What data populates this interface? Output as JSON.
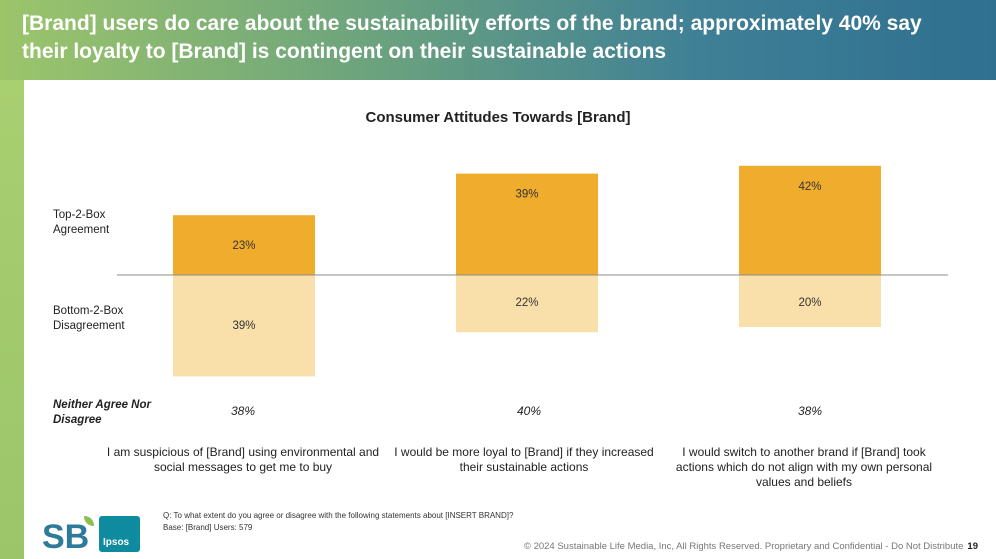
{
  "header": {
    "title": "[Brand] users do care about the sustainability efforts of the brand; approximately 40% say their loyalty to [Brand] is contingent on their sustainable actions"
  },
  "colors": {
    "agree": "#f0ac2d",
    "disagree": "#f9dfaa",
    "baseline": "#8c8c8c"
  },
  "chart_data": {
    "type": "bar",
    "title": "Consumer Attitudes Towards [Brand]",
    "row_labels": {
      "agree": "Top-2-Box Agreement",
      "disagree": "Bottom-2-Box Disagreement",
      "neutral": "Neither Agree Nor Disagree"
    },
    "categories": [
      "I am suspicious of [Brand] using environmental and social messages to get me to buy",
      "I would be more loyal to [Brand] if they increased their sustainable actions",
      "I would switch to another brand if [Brand] took actions which do not align with my own personal values and beliefs"
    ],
    "series": [
      {
        "name": "Top-2-Box Agreement",
        "values": [
          23,
          39,
          42
        ]
      },
      {
        "name": "Bottom-2-Box Disagreement",
        "values": [
          39,
          22,
          20
        ]
      },
      {
        "name": "Neither Agree Nor Disagree",
        "values": [
          38,
          40,
          38
        ]
      }
    ],
    "value_labels": {
      "agree": [
        "23%",
        "39%",
        "42%"
      ],
      "disagree": [
        "39%",
        "22%",
        "20%"
      ],
      "neutral": [
        "38%",
        "40%",
        "38%"
      ]
    }
  },
  "notes": {
    "question": "Q: To what extent do you agree or disagree with the following statements about [INSERT BRAND]?",
    "base": "Base: [Brand] Users: 579"
  },
  "logos": {
    "sb": "SB",
    "ipsos": "Ipsos"
  },
  "footer": {
    "copyright": "© 2024 Sustainable Life Media, Inc, All Rights Reserved. Proprietary and Confidential - Do Not Distribute",
    "page": "19"
  }
}
